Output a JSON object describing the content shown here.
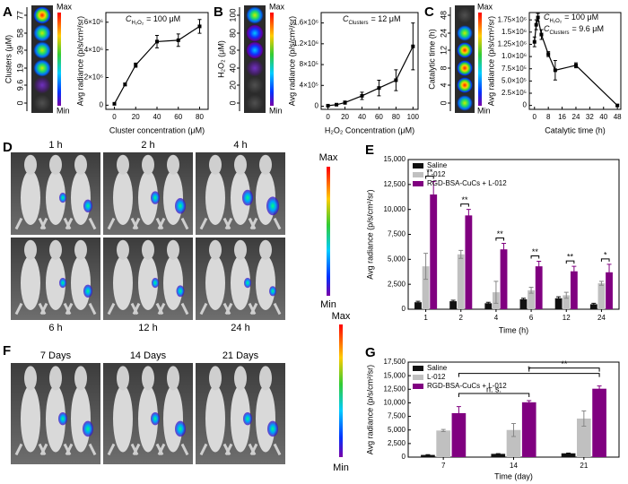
{
  "panel_letters": [
    "A",
    "B",
    "C",
    "D",
    "E",
    "F",
    "G"
  ],
  "plates": [
    {
      "axis_label": "Clusters (μM)",
      "ticks": [
        77,
        58,
        39,
        19,
        9.6,
        0
      ],
      "max": "Max",
      "min": "Min"
    },
    {
      "axis_label": "H₂O₂ (μM)",
      "ticks": [
        100,
        80,
        60,
        40,
        20,
        0
      ],
      "max": "Max",
      "min": "Min"
    },
    {
      "axis_label": "Catalytic time (h)",
      "ticks": [
        48,
        24,
        12,
        8,
        4,
        0
      ],
      "max": "Max",
      "min": "Min"
    }
  ],
  "imaging": [
    {
      "top_labels": [
        "1 h",
        "2 h",
        "4 h"
      ],
      "bottom_labels": [
        "6 h",
        "12 h",
        "24 h"
      ],
      "max": "Max",
      "min": "Min"
    },
    {
      "top_labels": [
        "7 Days",
        "14 Days",
        "21 Days"
      ],
      "max": "Max",
      "min": "Min"
    }
  ],
  "chart_data": [
    {
      "type": "line",
      "xlabel": "Cluster concentration (μM)",
      "ylabel": "Avg radiance (p/s/cm²/sr)",
      "annotation": [
        {
          "symbol": "C",
          "sub": "H₂O₂",
          "rest": "= 100 μM"
        }
      ],
      "x": [
        0,
        10,
        20,
        40,
        60,
        80
      ],
      "series": [
        {
          "color": "#000000",
          "values": [
            100000,
            1500000,
            2900000,
            4600000,
            4700000,
            5700000
          ],
          "errors": [
            50000,
            100000,
            150000,
            450000,
            450000,
            500000
          ]
        }
      ],
      "xlim": [
        -8,
        88
      ],
      "xticks": [
        0,
        20,
        40,
        60,
        80
      ],
      "ylim": [
        -300000,
        6700000
      ],
      "yticks": [
        0,
        {
          "value": 2000000,
          "label": "2×10⁶"
        },
        {
          "value": 4000000,
          "label": "4×10⁶"
        },
        {
          "value": 6000000,
          "label": "6×10⁶"
        }
      ]
    },
    {
      "type": "line",
      "xlabel": "H₂O₂ Concentration (μM)",
      "ylabel": "Avg radiance (p/s/cm²/sr)",
      "annotation": [
        {
          "symbol": "C",
          "sub": "Clusters",
          "rest": "= 12 μM"
        }
      ],
      "x": [
        0,
        10,
        20,
        40,
        60,
        80,
        100
      ],
      "series": [
        {
          "color": "#000000",
          "values": [
            10000,
            30000,
            70000,
            200000,
            350000,
            500000,
            1150000
          ],
          "errors": [
            10000,
            10000,
            30000,
            70000,
            150000,
            200000,
            450000
          ]
        }
      ],
      "xlim": [
        -8,
        106
      ],
      "xticks": [
        0,
        20,
        40,
        60,
        80,
        100
      ],
      "ylim": [
        -60000,
        1800000
      ],
      "yticks": [
        0,
        {
          "value": 400000,
          "label": "4×10⁵"
        },
        {
          "value": 800000,
          "label": "8×10⁵"
        },
        {
          "value": 1200000,
          "label": "1.2×10⁶"
        },
        {
          "value": 1600000,
          "label": "1.6×10⁶"
        }
      ]
    },
    {
      "type": "line",
      "xlabel": "Catalytic time (h)",
      "ylabel": "Avg radiance (p/s/cm²/sr)",
      "annotation": [
        {
          "symbol": "C",
          "sub": "H₂O₂",
          "rest": "= 100 μM"
        },
        {
          "symbol": "C",
          "sub": "Clusters",
          "rest": "= 9.6 μM"
        }
      ],
      "x": [
        0,
        1,
        2,
        4,
        8,
        12,
        24,
        48
      ],
      "series": [
        {
          "color": "#000000",
          "values": [
            1300000,
            1650000,
            1800000,
            1450000,
            1050000,
            720000,
            820000,
            0
          ],
          "errors": [
            100000,
            100000,
            80000,
            100000,
            50000,
            200000,
            50000,
            20000
          ]
        }
      ],
      "xlim": [
        -3,
        50
      ],
      "xticks": [
        0,
        8,
        16,
        24,
        32,
        40,
        48
      ],
      "ylim": [
        -80000,
        1900000
      ],
      "yticks": [
        0,
        {
          "value": 250000,
          "label": "2.5×10⁵"
        },
        {
          "value": 500000,
          "label": "5.0×10⁵"
        },
        {
          "value": 750000,
          "label": "7.5×10⁵"
        },
        {
          "value": 1000000,
          "label": "1.0×10⁶"
        },
        {
          "value": 1250000,
          "label": "1.25×10⁶"
        },
        {
          "value": 1500000,
          "label": "1.5×10⁶"
        },
        {
          "value": 1750000,
          "label": "1.75×10⁶"
        }
      ]
    },
    {
      "type": "bar",
      "xlabel": "Time (h)",
      "ylabel": "Avg radiance (p/s/cm²/sr)",
      "categories": [
        "1",
        "2",
        "4",
        "6",
        "12",
        "24"
      ],
      "series": [
        {
          "name": "Saline",
          "color": "#111111",
          "values": [
            700,
            800,
            600,
            1000,
            1100,
            500
          ],
          "errors": [
            100,
            100,
            100,
            100,
            150,
            100
          ]
        },
        {
          "name": "L-012",
          "color": "#c0c0c0",
          "values": [
            4300,
            5500,
            1700,
            1900,
            1400,
            2600
          ],
          "errors": [
            1300,
            400,
            1100,
            300,
            300,
            200
          ]
        },
        {
          "name": "RGD-BSA-CuCs + L-012",
          "color": "#800080",
          "values": [
            11500,
            9400,
            6000,
            4300,
            3800,
            3700
          ],
          "errors": [
            1300,
            600,
            600,
            500,
            500,
            800
          ]
        }
      ],
      "significance": [
        "**",
        "**",
        "**",
        "**",
        "**",
        "*"
      ],
      "legend": "upper left",
      "ylim": [
        0,
        15000
      ],
      "yticks": [
        0,
        {
          "value": 2500,
          "label": "2,500"
        },
        {
          "value": 5000,
          "label": "5,000"
        },
        {
          "value": 7500,
          "label": "7,500"
        },
        {
          "value": 10000,
          "label": "10,000"
        },
        {
          "value": 12500,
          "label": "12,500"
        },
        {
          "value": 15000,
          "label": "15,000"
        }
      ]
    },
    {
      "type": "bar",
      "xlabel": "Time (day)",
      "ylabel": "Avg radiance (p/s/cm²/sr)",
      "categories": [
        "7",
        "14",
        "21"
      ],
      "series": [
        {
          "name": "Saline",
          "color": "#111111",
          "values": [
            400,
            600,
            700
          ],
          "errors": [
            50,
            50,
            50
          ]
        },
        {
          "name": "L-012",
          "color": "#c0c0c0",
          "values": [
            4900,
            5000,
            7100
          ],
          "errors": [
            200,
            1200,
            1400
          ]
        },
        {
          "name": "RGD-BSA-CuCs + L-012",
          "color": "#800080",
          "values": [
            8100,
            10100,
            12600
          ],
          "errors": [
            1200,
            300,
            500
          ]
        }
      ],
      "brackets": [
        {
          "from": 0,
          "to": 1,
          "label": "n. s."
        },
        {
          "from": 0,
          "to": 2,
          "label": "*"
        },
        {
          "from": 1,
          "to": 2,
          "label": "**"
        }
      ],
      "legend": "upper left",
      "ylim": [
        0,
        17500
      ],
      "yticks": [
        0,
        {
          "value": 2500,
          "label": "2,500"
        },
        {
          "value": 5000,
          "label": "5,000"
        },
        {
          "value": 7500,
          "label": "7,500"
        },
        {
          "value": 10000,
          "label": "10,000"
        },
        {
          "value": 12500,
          "label": "12,500"
        },
        {
          "value": 15000,
          "label": "15,000"
        },
        {
          "value": 17500,
          "label": "17,500"
        }
      ]
    }
  ]
}
